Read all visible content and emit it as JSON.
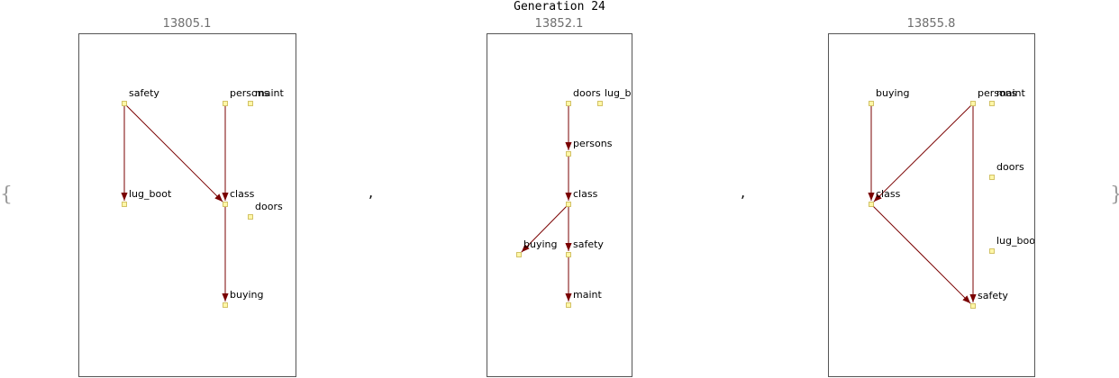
{
  "title": "Generation 24",
  "brace_open": "{",
  "brace_close": "}",
  "separator": ",",
  "graphs": [
    {
      "score": "13805.1",
      "nodes": [
        {
          "name": "safety"
        },
        {
          "name": "persons"
        },
        {
          "name": "maint"
        },
        {
          "name": "lug_boot"
        },
        {
          "name": "class"
        },
        {
          "name": "doors"
        },
        {
          "name": "buying"
        }
      ],
      "edges": [
        {
          "from": "safety",
          "to": "lug_boot"
        },
        {
          "from": "safety",
          "to": "class"
        },
        {
          "from": "persons",
          "to": "class"
        },
        {
          "from": "class",
          "to": "buying"
        }
      ]
    },
    {
      "score": "13852.1",
      "nodes": [
        {
          "name": "doors"
        },
        {
          "name": "lug_boot"
        },
        {
          "name": "persons"
        },
        {
          "name": "class"
        },
        {
          "name": "buying"
        },
        {
          "name": "safety"
        },
        {
          "name": "maint"
        }
      ],
      "edges": [
        {
          "from": "doors",
          "to": "persons"
        },
        {
          "from": "persons",
          "to": "class"
        },
        {
          "from": "class",
          "to": "buying"
        },
        {
          "from": "class",
          "to": "safety"
        },
        {
          "from": "safety",
          "to": "maint"
        }
      ]
    },
    {
      "score": "13855.8",
      "nodes": [
        {
          "name": "buying"
        },
        {
          "name": "persons"
        },
        {
          "name": "maint"
        },
        {
          "name": "doors"
        },
        {
          "name": "class"
        },
        {
          "name": "lug_boot"
        },
        {
          "name": "safety"
        }
      ],
      "edges": [
        {
          "from": "buying",
          "to": "class"
        },
        {
          "from": "persons",
          "to": "class"
        },
        {
          "from": "persons",
          "to": "safety"
        },
        {
          "from": "class",
          "to": "safety"
        }
      ]
    }
  ]
}
